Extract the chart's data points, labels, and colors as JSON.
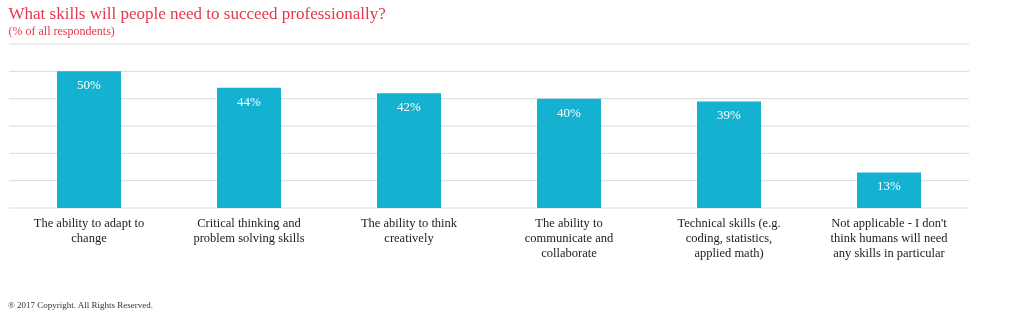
{
  "chart_data": {
    "type": "bar",
    "title": "What skills will people need to succeed professionally?",
    "subtitle": "(% of all respondents)",
    "categories": [
      "The ability to adapt to change",
      "Critical thinking and problem solving skills",
      "The ability to think creatively",
      "The ability to communicate and collaborate",
      "Technical skills (e.g. coding, statistics, applied math)",
      "Not applicable - I don't think humans will need any skills in particular"
    ],
    "values": [
      50,
      44,
      42,
      40,
      39,
      13
    ],
    "color": "#14b1d0",
    "data_labels": true,
    "value_labels": [
      "50%",
      "44%",
      "42%",
      "40%",
      "39%",
      "13%"
    ],
    "ylim": [
      0,
      60
    ],
    "yticks": [
      {
        "value": 0,
        "label": null
      },
      {
        "value": 10,
        "label": null
      },
      {
        "value": 20,
        "label": null
      },
      {
        "value": 30,
        "label": null
      },
      {
        "value": 40,
        "label": null
      },
      {
        "value": 50,
        "label": null
      },
      {
        "value": 60,
        "label": null
      }
    ],
    "grid": true,
    "tick_labels": "x",
    "annotations": [
      "® 2017 Copyright. All Rights Reserved."
    ]
  }
}
